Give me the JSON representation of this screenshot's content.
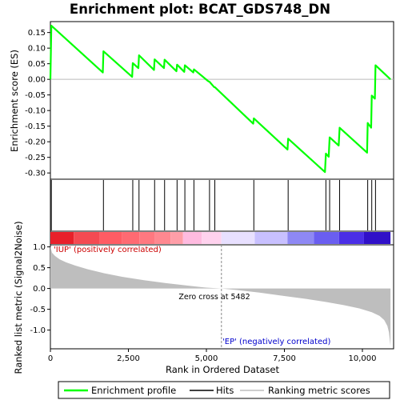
{
  "chart_data": {
    "type": "line",
    "title": "Enrichment plot: BCAT_GDS748_DN",
    "top_panel": {
      "ylabel": "Enrichment score (ES)",
      "ylim": [
        -0.32,
        0.185
      ],
      "yticks": [
        0.15,
        0.1,
        0.05,
        0.0,
        -0.05,
        -0.1,
        -0.15,
        -0.2,
        -0.25,
        -0.3
      ],
      "ytick_labels": [
        "0.15",
        "0.10",
        "0.05",
        "0.00",
        "-0.05",
        "-0.10",
        "-0.15",
        "-0.20",
        "-0.25",
        "-0.30"
      ],
      "series": [
        {
          "name": "Enrichment profile",
          "color": "#00ff00",
          "x": [
            0,
            30,
            1680,
            1700,
            2620,
            2640,
            2820,
            2840,
            3320,
            3340,
            3640,
            3660,
            4040,
            4060,
            4290,
            4310,
            4580,
            4600,
            5060,
            5100,
            5250,
            5270,
            6500,
            6520,
            7600,
            7620,
            8800,
            8830,
            8920,
            8950,
            9240,
            9270,
            10150,
            10170,
            10280,
            10300,
            10400,
            10420,
            10900
          ],
          "y": [
            0.0,
            0.172,
            0.022,
            0.09,
            0.008,
            0.052,
            0.036,
            0.077,
            0.03,
            0.064,
            0.036,
            0.063,
            0.026,
            0.047,
            0.024,
            0.045,
            0.022,
            0.032,
            -0.006,
            -0.008,
            -0.025,
            -0.025,
            -0.142,
            -0.125,
            -0.225,
            -0.19,
            -0.297,
            -0.238,
            -0.248,
            -0.186,
            -0.212,
            -0.155,
            -0.235,
            -0.14,
            -0.155,
            -0.052,
            -0.062,
            0.045,
            0.0
          ]
        }
      ]
    },
    "hits": [
      30,
      1700,
      2640,
      2840,
      3340,
      3660,
      4060,
      4310,
      4600,
      5100,
      5270,
      6520,
      7620,
      8830,
      8950,
      9270,
      10170,
      10300,
      10420
    ],
    "color_bar": {
      "segments": [
        {
          "start": 0,
          "end": 750,
          "color": "#e8202a"
        },
        {
          "start": 750,
          "end": 1580,
          "color": "#f44a52"
        },
        {
          "start": 1580,
          "end": 2300,
          "color": "#ff5c64"
        },
        {
          "start": 2300,
          "end": 2850,
          "color": "#ff6a72"
        },
        {
          "start": 2850,
          "end": 3350,
          "color": "#ff7880"
        },
        {
          "start": 3350,
          "end": 3850,
          "color": "#ff8890"
        },
        {
          "start": 3850,
          "end": 4250,
          "color": "#ff9ea8"
        },
        {
          "start": 4250,
          "end": 4850,
          "color": "#ffbbe0"
        },
        {
          "start": 4850,
          "end": 5480,
          "color": "#ffd2ee"
        },
        {
          "start": 5480,
          "end": 6550,
          "color": "#e8e0ff"
        },
        {
          "start": 6550,
          "end": 7600,
          "color": "#c8c0ff"
        },
        {
          "start": 7600,
          "end": 8450,
          "color": "#8e88f4"
        },
        {
          "start": 8450,
          "end": 9250,
          "color": "#6a5ef0"
        },
        {
          "start": 9250,
          "end": 10050,
          "color": "#4a2ee6"
        },
        {
          "start": 10050,
          "end": 10900,
          "color": "#3010c8"
        }
      ]
    },
    "bottom_panel": {
      "ylabel": "Ranked list metric (Signal2Noise)",
      "xlabel": "Rank in Ordered Dataset",
      "xlim": [
        0,
        11000
      ],
      "ylim": [
        -1.45,
        1.05
      ],
      "xticks": [
        0,
        2500,
        5000,
        7500,
        10000
      ],
      "xtick_labels": [
        "0",
        "2,500",
        "5,000",
        "7,500",
        "10,000"
      ],
      "yticks": [
        1.0,
        0.5,
        0.0,
        -0.5,
        -1.0
      ],
      "ytick_labels": [
        "1.0",
        "0.5",
        "0.0",
        "-0.5",
        "-1.0"
      ],
      "metric_x": [
        0,
        50,
        150,
        300,
        500,
        800,
        1200,
        1700,
        2300,
        3000,
        3700,
        4400,
        5000,
        5482,
        6000,
        6700,
        7400,
        8100,
        8800,
        9400,
        9900,
        10300,
        10550,
        10700,
        10800,
        10850,
        10900
      ],
      "metric_y": [
        1.02,
        0.86,
        0.78,
        0.7,
        0.63,
        0.55,
        0.46,
        0.37,
        0.28,
        0.2,
        0.13,
        0.07,
        0.02,
        0.0,
        -0.04,
        -0.1,
        -0.17,
        -0.24,
        -0.32,
        -0.4,
        -0.48,
        -0.57,
        -0.66,
        -0.76,
        -0.9,
        -1.05,
        -1.38
      ],
      "fill_color": "#bebebe",
      "zero_cross_rank": 5482,
      "annotations": {
        "positive": "'IUP' (positively correlated)",
        "negative": "'EP' (negatively correlated)",
        "zero_cross": "Zero cross at 5482"
      },
      "positive_color": "#cc0000",
      "negative_color": "#0000cc"
    },
    "legend": {
      "placement": "bottom",
      "entries": [
        {
          "label": "Enrichment profile",
          "color": "#00ff00"
        },
        {
          "label": "Hits",
          "color": "#000000"
        },
        {
          "label": "Ranking metric scores",
          "color": "#bebebe"
        }
      ]
    }
  }
}
